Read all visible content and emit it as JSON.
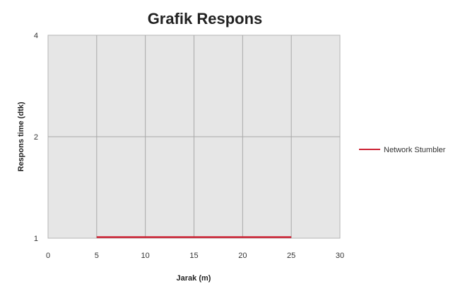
{
  "chart_data": {
    "type": "line",
    "title": "Grafik Respons",
    "xlabel": "Jarak (m)",
    "ylabel": "Respons time (dtk)",
    "xlim": [
      0,
      30
    ],
    "ylim": [
      1,
      4
    ],
    "x_ticks": [
      0,
      5,
      10,
      15,
      20,
      25,
      30
    ],
    "y_ticks": [
      1,
      2,
      4
    ],
    "y_scale": "log",
    "grid": true,
    "legend_position": "right",
    "series": [
      {
        "name": "Network Stumbler",
        "color": "#cc2233",
        "x": [
          5,
          10,
          15,
          20,
          25
        ],
        "y": [
          1,
          1,
          1,
          1,
          1
        ]
      }
    ]
  }
}
